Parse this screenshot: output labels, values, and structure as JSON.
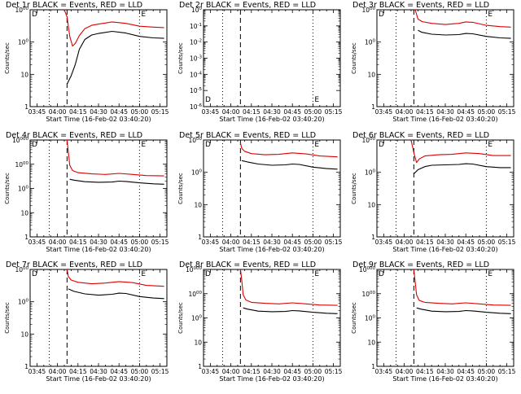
{
  "chart_data": [
    {
      "type": "line",
      "title": "Det 1r BLACK = Events, RED = LLD",
      "xlabel": "Start Time (16-Feb-02 03:40:20)",
      "ylabel": "Counts/sec",
      "xlim": [
        "03:40",
        "05:20"
      ],
      "ylim": [
        1,
        1000
      ],
      "yscale": "log",
      "xticks": [
        "03:45",
        "04:00",
        "04:15",
        "04:30",
        "04:45",
        "05:00",
        "05:15"
      ],
      "yticks": [
        "1",
        "10",
        "100",
        "1000"
      ],
      "markers": {
        "dotted": [
          "03:54",
          "05:00"
        ],
        "dashed": "04:07",
        "left_label": "D",
        "right_label": "E"
      },
      "series": [
        {
          "name": "BLACK = Events",
          "color": "#000000",
          "x": [
            "04:07",
            "04:10",
            "04:13",
            "04:16",
            "04:20",
            "04:25",
            "04:30",
            "04:40",
            "04:50",
            "05:00",
            "05:10",
            "05:18"
          ],
          "values": [
            5,
            9,
            20,
            60,
            120,
            165,
            185,
            215,
            190,
            150,
            135,
            130
          ]
        },
        {
          "name": "RED = LLD",
          "color": "#dd0000",
          "x": [
            "04:05",
            "04:07",
            "04:09",
            "04:11",
            "04:13",
            "04:16",
            "04:20",
            "04:25",
            "04:30",
            "04:40",
            "04:50",
            "05:00",
            "05:10",
            "05:18"
          ],
          "values": [
            1000,
            600,
            150,
            75,
            90,
            160,
            260,
            330,
            360,
            420,
            380,
            310,
            290,
            280
          ]
        }
      ]
    },
    {
      "type": "line",
      "title": "Det 2r BLACK = Events, RED = LLD",
      "xlabel": "Start Time (16-Feb-02 03:40:20)",
      "ylabel": "Counts/sec",
      "xlim": [
        "03:40",
        "05:20"
      ],
      "ylim": [
        1e-06,
        1
      ],
      "yscale": "log",
      "xticks": [
        "03:45",
        "04:00",
        "04:15",
        "04:30",
        "04:45",
        "05:00",
        "05:15"
      ],
      "yticks": [
        "10-6",
        "10-5",
        "10-4",
        "10-3",
        "10-2",
        "10-1",
        "100"
      ],
      "markers": {
        "dotted": [
          "03:54",
          "05:00"
        ],
        "dashed": "04:07",
        "left_label": "D",
        "right_label": "E"
      },
      "series": []
    },
    {
      "type": "line",
      "title": "Det 3r BLACK = Events, RED = LLD",
      "xlabel": "Start Time (16-Feb-02 03:40:20)",
      "ylabel": "Counts/sec",
      "xlim": [
        "03:40",
        "05:20"
      ],
      "ylim": [
        1,
        1000
      ],
      "yscale": "log",
      "xticks": [
        "03:45",
        "04:00",
        "04:15",
        "04:30",
        "04:45",
        "05:00",
        "05:15"
      ],
      "yticks": [
        "1",
        "10",
        "100",
        "1000"
      ],
      "markers": {
        "dotted": [
          "03:54",
          "05:00"
        ],
        "dashed": "04:07",
        "left_label": "D",
        "right_label": "E"
      },
      "series": [
        {
          "name": "BLACK = Events",
          "color": "#000000",
          "x": [
            "04:10",
            "04:13",
            "04:20",
            "04:30",
            "04:40",
            "04:45",
            "04:50",
            "05:00",
            "05:10",
            "05:18"
          ],
          "values": [
            230,
            200,
            175,
            165,
            170,
            185,
            180,
            150,
            135,
            130
          ]
        },
        {
          "name": "RED = LLD",
          "color": "#dd0000",
          "x": [
            "04:08",
            "04:10",
            "04:13",
            "04:20",
            "04:30",
            "04:40",
            "04:45",
            "04:50",
            "05:00",
            "05:10",
            "05:18"
          ],
          "values": [
            1000,
            520,
            430,
            380,
            350,
            380,
            420,
            410,
            330,
            300,
            290
          ]
        }
      ]
    },
    {
      "type": "line",
      "title": "Det 4r BLACK = Events, RED = LLD",
      "xlabel": "Start Time (16-Feb-02 03:40:20)",
      "ylabel": "Counts/sec",
      "xlim": [
        "03:40",
        "05:20"
      ],
      "ylim": [
        1,
        10000
      ],
      "yscale": "log",
      "xticks": [
        "03:45",
        "04:00",
        "04:15",
        "04:30",
        "04:45",
        "05:00",
        "05:15"
      ],
      "yticks": [
        "1",
        "10",
        "100",
        "1000",
        "10000"
      ],
      "markers": {
        "dotted": [
          "03:54",
          "05:00"
        ],
        "dashed": "04:07",
        "left_label": "D",
        "right_label": "E"
      },
      "series": [
        {
          "name": "BLACK = Events",
          "color": "#000000",
          "x": [
            "04:09",
            "04:12",
            "04:20",
            "04:30",
            "04:40",
            "04:45",
            "04:50",
            "05:00",
            "05:10",
            "05:18"
          ],
          "values": [
            240,
            220,
            190,
            180,
            185,
            200,
            195,
            170,
            155,
            150
          ]
        },
        {
          "name": "RED = LLD",
          "color": "#dd0000",
          "x": [
            "04:07",
            "04:08",
            "04:09",
            "04:11",
            "04:15",
            "04:25",
            "04:35",
            "04:45",
            "04:55",
            "05:05",
            "05:18"
          ],
          "values": [
            10000,
            3000,
            900,
            550,
            450,
            400,
            380,
            420,
            380,
            340,
            330
          ]
        }
      ]
    },
    {
      "type": "line",
      "title": "Det 5r BLACK = Events, RED = LLD",
      "xlabel": "Start Time (16-Feb-02 03:40:20)",
      "ylabel": "Counts/sec",
      "xlim": [
        "03:40",
        "05:20"
      ],
      "ylim": [
        1,
        1000
      ],
      "yscale": "log",
      "xticks": [
        "03:45",
        "04:00",
        "04:15",
        "04:30",
        "04:45",
        "05:00",
        "05:15"
      ],
      "yticks": [
        "1",
        "10",
        "100",
        "1000"
      ],
      "markers": {
        "dotted": [
          "03:54",
          "05:00"
        ],
        "dashed": "04:07",
        "left_label": "D",
        "right_label": "E"
      },
      "series": [
        {
          "name": "BLACK = Events",
          "color": "#000000",
          "x": [
            "04:08",
            "04:12",
            "04:20",
            "04:30",
            "04:40",
            "04:45",
            "04:50",
            "05:00",
            "05:10",
            "05:18"
          ],
          "values": [
            230,
            210,
            180,
            165,
            170,
            180,
            175,
            145,
            130,
            125
          ]
        },
        {
          "name": "RED = LLD",
          "color": "#dd0000",
          "x": [
            "04:07",
            "04:08",
            "04:10",
            "04:15",
            "04:25",
            "04:35",
            "04:45",
            "04:55",
            "05:05",
            "05:18"
          ],
          "values": [
            800,
            550,
            450,
            380,
            350,
            360,
            400,
            370,
            320,
            300
          ]
        }
      ]
    },
    {
      "type": "line",
      "title": "Det 6r BLACK = Events, RED = LLD",
      "xlabel": "Start Time (16-Feb-02 03:40:20)",
      "ylabel": "Counts/sec",
      "xlim": [
        "03:40",
        "05:20"
      ],
      "ylim": [
        1,
        1000
      ],
      "yscale": "log",
      "xticks": [
        "03:45",
        "04:00",
        "04:15",
        "04:30",
        "04:45",
        "05:00",
        "05:15"
      ],
      "yticks": [
        "1",
        "10",
        "100",
        "1000"
      ],
      "markers": {
        "dotted": [
          "03:54",
          "05:00"
        ],
        "dashed": "04:07",
        "left_label": "D",
        "right_label": "E"
      },
      "series": [
        {
          "name": "BLACK = Events",
          "color": "#000000",
          "x": [
            "04:07",
            "04:10",
            "04:15",
            "04:20",
            "04:30",
            "04:40",
            "04:45",
            "04:50",
            "05:00",
            "05:10",
            "05:18"
          ],
          "values": [
            90,
            120,
            150,
            165,
            170,
            175,
            185,
            180,
            150,
            140,
            140
          ]
        },
        {
          "name": "RED = LLD",
          "color": "#dd0000",
          "x": [
            "04:05",
            "04:07",
            "04:09",
            "04:11",
            "04:15",
            "04:25",
            "04:35",
            "04:45",
            "04:55",
            "05:05",
            "05:18"
          ],
          "values": [
            1000,
            400,
            200,
            260,
            320,
            350,
            360,
            400,
            380,
            330,
            330
          ]
        }
      ]
    },
    {
      "type": "line",
      "title": "Det 7r BLACK = Events, RED = LLD",
      "xlabel": "Start Time (16-Feb-02 03:40:20)",
      "ylabel": "Counts/sec",
      "xlim": [
        "03:40",
        "05:20"
      ],
      "ylim": [
        1,
        1000
      ],
      "yscale": "log",
      "xticks": [
        "03:45",
        "04:00",
        "04:15",
        "04:30",
        "04:45",
        "05:00",
        "05:15"
      ],
      "yticks": [
        "1",
        "10",
        "100",
        "1000"
      ],
      "markers": {
        "dotted": [
          "03:54",
          "05:00"
        ],
        "dashed": "04:07",
        "left_label": "D",
        "right_label": "E"
      },
      "series": [
        {
          "name": "BLACK = Events",
          "color": "#000000",
          "x": [
            "04:08",
            "04:12",
            "04:20",
            "04:30",
            "04:40",
            "04:45",
            "04:50",
            "05:00",
            "05:10",
            "05:18"
          ],
          "values": [
            250,
            210,
            175,
            160,
            170,
            185,
            180,
            145,
            130,
            125
          ]
        },
        {
          "name": "RED = LLD",
          "color": "#dd0000",
          "x": [
            "04:07",
            "04:08",
            "04:10",
            "04:15",
            "04:25",
            "04:35",
            "04:45",
            "04:55",
            "05:05",
            "05:18"
          ],
          "values": [
            1000,
            600,
            470,
            400,
            360,
            380,
            420,
            390,
            320,
            300
          ]
        }
      ]
    },
    {
      "type": "line",
      "title": "Det 8r BLACK = Events, RED = LLD",
      "xlabel": "Start Time (16-Feb-02 03:40:20)",
      "ylabel": "Counts/sec",
      "xlim": [
        "03:40",
        "05:20"
      ],
      "ylim": [
        1,
        10000
      ],
      "yscale": "log",
      "xticks": [
        "03:45",
        "04:00",
        "04:15",
        "04:30",
        "04:45",
        "05:00",
        "05:15"
      ],
      "yticks": [
        "1",
        "10",
        "100",
        "1000",
        "10000"
      ],
      "markers": {
        "dotted": [
          "03:54",
          "05:00"
        ],
        "dashed": "04:07",
        "left_label": "D",
        "right_label": "E"
      },
      "series": [
        {
          "name": "BLACK = Events",
          "color": "#000000",
          "x": [
            "04:09",
            "04:12",
            "04:20",
            "04:30",
            "04:40",
            "04:45",
            "04:50",
            "05:00",
            "05:10",
            "05:18"
          ],
          "values": [
            260,
            230,
            190,
            180,
            185,
            200,
            195,
            170,
            155,
            150
          ]
        },
        {
          "name": "RED = LLD",
          "color": "#dd0000",
          "x": [
            "04:07",
            "04:08",
            "04:09",
            "04:11",
            "04:15",
            "04:25",
            "04:35",
            "04:45",
            "04:55",
            "05:05",
            "05:18"
          ],
          "values": [
            10000,
            3500,
            900,
            550,
            440,
            400,
            380,
            420,
            380,
            340,
            330
          ]
        }
      ]
    },
    {
      "type": "line",
      "title": "Det 9r BLACK = Events, RED = LLD",
      "xlabel": "Start Time (16-Feb-02 03:40:20)",
      "ylabel": "Counts/sec",
      "xlim": [
        "03:40",
        "05:20"
      ],
      "ylim": [
        1,
        10000
      ],
      "yscale": "log",
      "xticks": [
        "03:45",
        "04:00",
        "04:15",
        "04:30",
        "04:45",
        "05:00",
        "05:15"
      ],
      "yticks": [
        "1",
        "10",
        "100",
        "1000",
        "10000"
      ],
      "markers": {
        "dotted": [
          "03:54",
          "05:00"
        ],
        "dashed": "04:07",
        "left_label": "D",
        "right_label": "E"
      },
      "series": [
        {
          "name": "BLACK = Events",
          "color": "#000000",
          "x": [
            "04:09",
            "04:12",
            "04:20",
            "04:30",
            "04:40",
            "04:45",
            "04:50",
            "05:00",
            "05:10",
            "05:18"
          ],
          "values": [
            260,
            230,
            190,
            180,
            185,
            200,
            195,
            170,
            155,
            150
          ]
        },
        {
          "name": "RED = LLD",
          "color": "#dd0000",
          "x": [
            "04:07",
            "04:08",
            "04:09",
            "04:11",
            "04:15",
            "04:25",
            "04:35",
            "04:45",
            "04:55",
            "05:05",
            "05:18"
          ],
          "values": [
            10000,
            3000,
            900,
            520,
            440,
            400,
            380,
            420,
            380,
            340,
            330
          ]
        }
      ]
    }
  ]
}
